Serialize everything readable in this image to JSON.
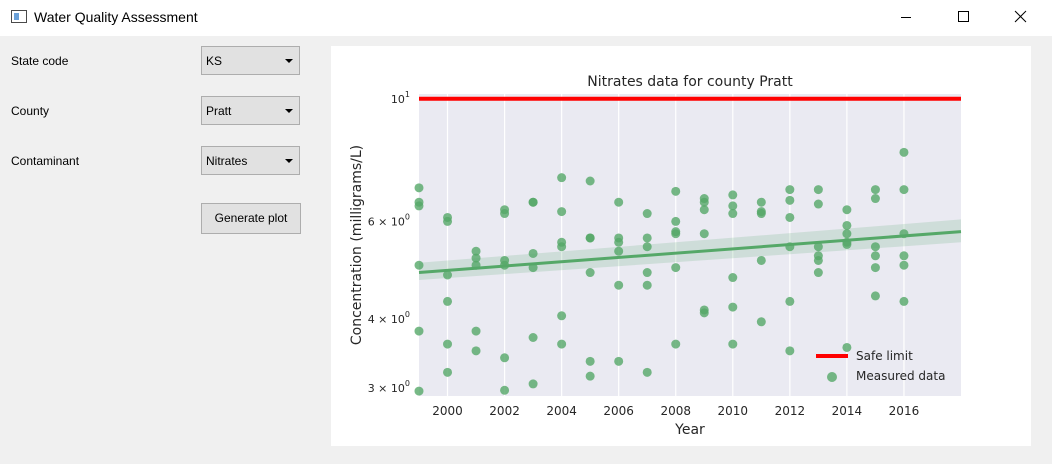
{
  "window": {
    "title": "Water Quality Assessment"
  },
  "controls": {
    "state_label": "State code",
    "state_value": "KS",
    "county_label": "County",
    "county_value": "Pratt",
    "contaminant_label": "Contaminant",
    "contaminant_value": "Nitrates",
    "generate_label": "Generate plot"
  },
  "chart_data": {
    "type": "scatter",
    "title": "Nitrates data for county Pratt",
    "xlabel": "Year",
    "ylabel": "Concentration (milligrams/L)",
    "xlim": [
      1999,
      2018
    ],
    "ylim": [
      2.9,
      10.2
    ],
    "yscale": "log",
    "x_ticks": [
      2000,
      2002,
      2004,
      2006,
      2008,
      2010,
      2012,
      2014,
      2016
    ],
    "y_ticks": [
      {
        "value": 3,
        "mant": "3 × 10",
        "exp": "0"
      },
      {
        "value": 4,
        "mant": "4 × 10",
        "exp": "0"
      },
      {
        "value": 6,
        "mant": "6 × 10",
        "exp": "0"
      },
      {
        "value": 10,
        "mant": "10",
        "exp": "1"
      }
    ],
    "grid": true,
    "legend_position": "bottom-right",
    "colors": {
      "safe_limit": "#ff0000",
      "measured": "#55a868",
      "background": "#eaeaf2"
    },
    "safe_limit": {
      "name": "Safe limit",
      "value": 10
    },
    "measured": {
      "name": "Measured data",
      "points": [
        [
          1999,
          6.9
        ],
        [
          1999,
          6.5
        ],
        [
          1999,
          6.4
        ],
        [
          1999,
          5.0
        ],
        [
          1999,
          3.8
        ],
        [
          1999,
          2.96
        ],
        [
          2000,
          6.1
        ],
        [
          2000,
          6.0
        ],
        [
          2000,
          4.8
        ],
        [
          2000,
          4.3
        ],
        [
          2000,
          3.6
        ],
        [
          2000,
          3.2
        ],
        [
          2001,
          5.3
        ],
        [
          2001,
          5.15
        ],
        [
          2001,
          5.0
        ],
        [
          2001,
          3.8
        ],
        [
          2001,
          3.5
        ],
        [
          2002,
          6.3
        ],
        [
          2002,
          6.2
        ],
        [
          2002,
          5.1
        ],
        [
          2002,
          5.0
        ],
        [
          2002,
          3.4
        ],
        [
          2002,
          2.97
        ],
        [
          2003,
          6.5
        ],
        [
          2003,
          6.5
        ],
        [
          2003,
          5.25
        ],
        [
          2003,
          4.95
        ],
        [
          2003,
          3.7
        ],
        [
          2003,
          3.05
        ],
        [
          2004,
          7.2
        ],
        [
          2004,
          6.25
        ],
        [
          2004,
          5.5
        ],
        [
          2004,
          5.4
        ],
        [
          2004,
          4.05
        ],
        [
          2004,
          3.6
        ],
        [
          2005,
          7.1
        ],
        [
          2005,
          5.6
        ],
        [
          2005,
          5.6
        ],
        [
          2005,
          4.85
        ],
        [
          2005,
          3.35
        ],
        [
          2005,
          3.15
        ],
        [
          2006,
          6.5
        ],
        [
          2006,
          5.6
        ],
        [
          2006,
          5.5
        ],
        [
          2006,
          5.3
        ],
        [
          2006,
          4.6
        ],
        [
          2006,
          3.35
        ],
        [
          2007,
          6.2
        ],
        [
          2007,
          5.6
        ],
        [
          2007,
          5.4
        ],
        [
          2007,
          4.85
        ],
        [
          2007,
          4.6
        ],
        [
          2007,
          3.2
        ],
        [
          2008,
          6.8
        ],
        [
          2008,
          6.0
        ],
        [
          2008,
          5.75
        ],
        [
          2008,
          5.7
        ],
        [
          2008,
          4.95
        ],
        [
          2008,
          3.6
        ],
        [
          2009,
          6.6
        ],
        [
          2009,
          6.5
        ],
        [
          2009,
          6.3
        ],
        [
          2009,
          5.7
        ],
        [
          2009,
          4.15
        ],
        [
          2009,
          4.1
        ],
        [
          2010,
          6.7
        ],
        [
          2010,
          6.4
        ],
        [
          2010,
          6.2
        ],
        [
          2010,
          4.75
        ],
        [
          2010,
          4.2
        ],
        [
          2010,
          3.6
        ],
        [
          2011,
          6.5
        ],
        [
          2011,
          6.25
        ],
        [
          2011,
          6.2
        ],
        [
          2011,
          5.1
        ],
        [
          2011,
          3.95
        ],
        [
          2012,
          6.85
        ],
        [
          2012,
          6.55
        ],
        [
          2012,
          6.1
        ],
        [
          2012,
          5.4
        ],
        [
          2012,
          4.3
        ],
        [
          2012,
          3.5
        ],
        [
          2013,
          6.85
        ],
        [
          2013,
          6.45
        ],
        [
          2013,
          5.4
        ],
        [
          2013,
          5.2
        ],
        [
          2013,
          5.1
        ],
        [
          2013,
          4.85
        ],
        [
          2014,
          6.3
        ],
        [
          2014,
          5.9
        ],
        [
          2014,
          5.7
        ],
        [
          2014,
          5.5
        ],
        [
          2014,
          5.45
        ],
        [
          2014,
          3.55
        ],
        [
          2015,
          6.85
        ],
        [
          2015,
          6.6
        ],
        [
          2015,
          5.4
        ],
        [
          2015,
          5.2
        ],
        [
          2015,
          4.95
        ],
        [
          2015,
          4.4
        ],
        [
          2016,
          8.0
        ],
        [
          2016,
          6.85
        ],
        [
          2016,
          5.7
        ],
        [
          2016,
          5.2
        ],
        [
          2016,
          5.0
        ],
        [
          2016,
          4.3
        ]
      ]
    },
    "regression": {
      "x": [
        1999,
        2018
      ],
      "y": [
        4.85,
        5.75
      ],
      "ci_low": [
        4.7,
        5.5
      ],
      "ci_high": [
        5.05,
        6.05
      ]
    }
  }
}
